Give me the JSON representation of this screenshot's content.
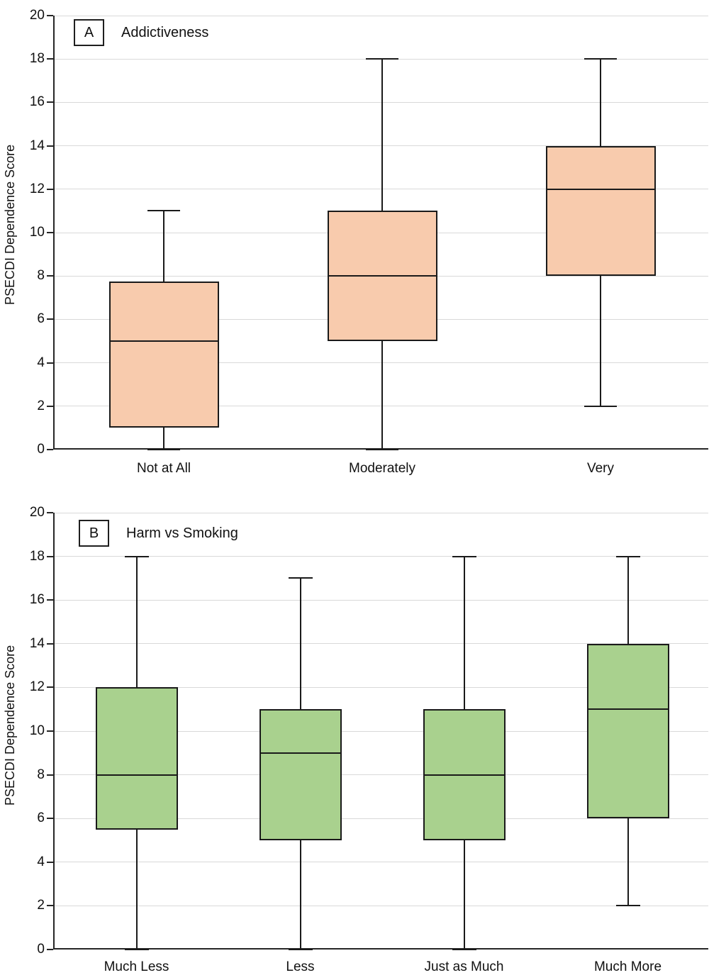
{
  "figure": {
    "background": "#ffffff",
    "axis_color": "#262626",
    "gridline_color": "#d9d9d9",
    "box_border_color": "#1a1a1a"
  },
  "chart_data": [
    {
      "type": "box",
      "panel_label": "A",
      "title": "Addictiveness",
      "ylabel": "PSECDI Dependence Score",
      "ylim": [
        0,
        20
      ],
      "ytick_step": 2,
      "grid": true,
      "legend": "none",
      "box_fill": "#F8CBAD",
      "categories": [
        "Not at All",
        "Moderately",
        "Very"
      ],
      "boxes": [
        {
          "category": "Not at All",
          "whisker_low": 0,
          "q1": 1,
          "median": 5,
          "q3": 7.75,
          "whisker_high": 11
        },
        {
          "category": "Moderately",
          "whisker_low": 0,
          "q1": 5,
          "median": 8,
          "q3": 11,
          "whisker_high": 18
        },
        {
          "category": "Very",
          "whisker_low": 2,
          "q1": 8,
          "median": 12,
          "q3": 14,
          "whisker_high": 18
        }
      ]
    },
    {
      "type": "box",
      "panel_label": "B",
      "title": "Harm vs Smoking",
      "ylabel": "PSECDI Dependence Score",
      "ylim": [
        0,
        20
      ],
      "ytick_step": 2,
      "grid": true,
      "legend": "none",
      "box_fill": "#A9D18E",
      "categories": [
        "Much Less",
        "Less",
        "Just as Much",
        "Much More"
      ],
      "boxes": [
        {
          "category": "Much Less",
          "whisker_low": 0,
          "q1": 5.5,
          "median": 8,
          "q3": 12,
          "whisker_high": 18
        },
        {
          "category": "Less",
          "whisker_low": 0,
          "q1": 5,
          "median": 9,
          "q3": 11,
          "whisker_high": 17
        },
        {
          "category": "Just as Much",
          "whisker_low": 0,
          "q1": 5,
          "median": 8,
          "q3": 11,
          "whisker_high": 18
        },
        {
          "category": "Much More",
          "whisker_low": 2,
          "q1": 6,
          "median": 11,
          "q3": 14,
          "whisker_high": 18
        }
      ]
    }
  ]
}
